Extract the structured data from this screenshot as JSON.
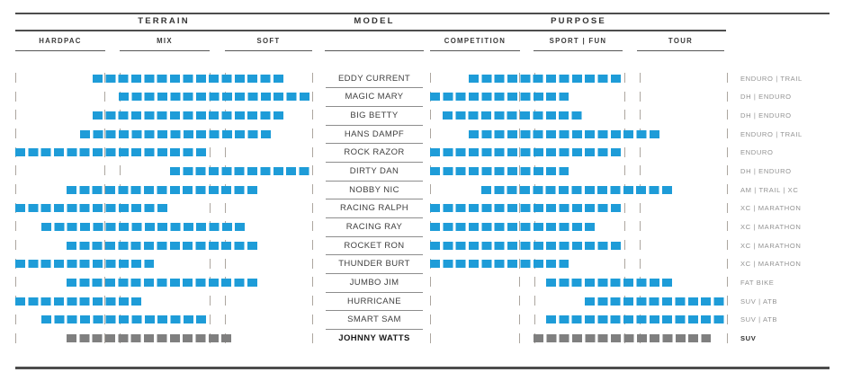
{
  "header": {
    "terrain": {
      "label": "TERRAIN",
      "columns": [
        "HARDPAC",
        "MIX",
        "SOFT"
      ]
    },
    "model": {
      "label": "MODEL"
    },
    "purpose": {
      "label": "PURPOSE",
      "columns": [
        "COMPETITION",
        "SPORT | FUN",
        "TOUR"
      ]
    }
  },
  "colors": {
    "bar_blue": "#1E9CD8",
    "bar_gray_highlight": "#7F7F7F",
    "rule": "#4d4d4d",
    "tick": "#aca69f"
  },
  "chart_data": {
    "type": "table",
    "title": "Tire model comparison: terrain suitability and purpose",
    "scale_slots_per_strip": 23,
    "terrain_regions": [
      "HARDPAC",
      "MIX",
      "SOFT"
    ],
    "purpose_regions": [
      "COMPETITION",
      "SPORT | FUN",
      "TOUR"
    ],
    "legend_position": "none",
    "rows": [
      {
        "model": "EDDY CURRENT",
        "terrain": [
          6,
          21
        ],
        "purpose": [
          3,
          15
        ],
        "category": "ENDURO | TRAIL",
        "highlight": false
      },
      {
        "model": "MAGIC MARY",
        "terrain": [
          8,
          23
        ],
        "purpose": [
          0,
          11
        ],
        "category": "DH | ENDURO",
        "highlight": false
      },
      {
        "model": "BIG BETTY",
        "terrain": [
          6,
          21
        ],
        "purpose": [
          1,
          12
        ],
        "category": "DH | ENDURO",
        "highlight": false
      },
      {
        "model": "HANS DAMPF",
        "terrain": [
          5,
          20
        ],
        "purpose": [
          3,
          18
        ],
        "category": "ENDURO | TRAIL",
        "highlight": false
      },
      {
        "model": "ROCK RAZOR",
        "terrain": [
          0,
          15
        ],
        "purpose": [
          0,
          15
        ],
        "category": "ENDURO",
        "highlight": false
      },
      {
        "model": "DIRTY DAN",
        "terrain": [
          12,
          23
        ],
        "purpose": [
          0,
          11
        ],
        "category": "DH | ENDURO",
        "highlight": false
      },
      {
        "model": "NOBBY NIC",
        "terrain": [
          4,
          19
        ],
        "purpose": [
          4,
          19
        ],
        "category": "AM | TRAIL | XC",
        "highlight": false
      },
      {
        "model": "RACING RALPH",
        "terrain": [
          0,
          12
        ],
        "purpose": [
          0,
          15
        ],
        "category": "XC | MARATHON",
        "highlight": false
      },
      {
        "model": "RACING RAY",
        "terrain": [
          2,
          18
        ],
        "purpose": [
          0,
          13
        ],
        "category": "XC | MARATHON",
        "highlight": false
      },
      {
        "model": "ROCKET RON",
        "terrain": [
          4,
          19
        ],
        "purpose": [
          0,
          15
        ],
        "category": "XC | MARATHON",
        "highlight": false
      },
      {
        "model": "THUNDER BURT",
        "terrain": [
          0,
          11
        ],
        "purpose": [
          0,
          11
        ],
        "category": "XC | MARATHON",
        "highlight": false
      },
      {
        "model": "JUMBO JIM",
        "terrain": [
          4,
          19
        ],
        "purpose": [
          9,
          19
        ],
        "category": "FAT BIKE",
        "highlight": false
      },
      {
        "model": "HURRICANE",
        "terrain": [
          0,
          10
        ],
        "purpose": [
          12,
          23
        ],
        "category": "SUV | ATB",
        "highlight": false
      },
      {
        "model": "SMART SAM",
        "terrain": [
          2,
          15
        ],
        "purpose": [
          9,
          23
        ],
        "category": "SUV | ATB",
        "highlight": false
      },
      {
        "model": "JOHNNY WATTS",
        "terrain": [
          4,
          17
        ],
        "purpose": [
          8,
          22
        ],
        "category": "SUV",
        "highlight": true
      }
    ]
  }
}
